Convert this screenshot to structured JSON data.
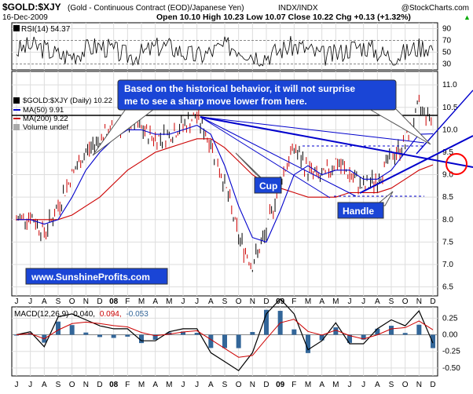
{
  "header": {
    "symbol": "$GOLD:$XJY",
    "description": "(Gold - Continuous Contract (EOD)/Japanese Yen)",
    "exchange": "INDX/INDX",
    "brand": "@StockCharts.com",
    "date": "16-Dec-2009",
    "ohlc_line": "Open 10.10  High 10.23  Low 10.07  Close 10.22  Chg +0.13 (+1.32%)",
    "up_arrow": "▲"
  },
  "rsi_panel": {
    "label": "RSI(14) 54.37",
    "ticks": [
      "90",
      "70",
      "50",
      "30"
    ],
    "tick_values": [
      90,
      70,
      50,
      30
    ]
  },
  "main_panel": {
    "legend": [
      "$GOLD:$XJY (Daily) 10.22",
      "MA(50) 9.91",
      "MA(200) 9.22",
      "Volume undef"
    ],
    "y_ticks": [
      "11.0",
      "10.5",
      "10.0",
      "9.5",
      "9.0",
      "8.5",
      "8.0",
      "7.5",
      "7.0",
      "6.5"
    ],
    "y_values": [
      11.0,
      10.5,
      10.0,
      9.5,
      9.0,
      8.5,
      8.0,
      7.5,
      7.0,
      6.5
    ],
    "callout": [
      "Based on the historical behavior, it will not surprise",
      "me to see a sharp move lower from here."
    ],
    "cup_label": "Cup",
    "handle_label": "Handle",
    "website": "www.SunshineProfits.com"
  },
  "macd_panel": {
    "label_prefix": "MACD(12,26,9)",
    "macd_value": "0.040,",
    "signal_value": "0.094,",
    "hist_value": "-0.053",
    "y_ticks": [
      "0.25",
      "0.00",
      "-0.25",
      "-0.50"
    ],
    "y_values": [
      0.25,
      0.0,
      -0.25,
      -0.5
    ]
  },
  "x_axis": {
    "months": [
      "J",
      "J",
      "A",
      "S",
      "O",
      "N",
      "D",
      "08",
      "F",
      "M",
      "A",
      "M",
      "J",
      "J",
      "A",
      "S",
      "O",
      "N",
      "D",
      "09",
      "F",
      "M",
      "A",
      "M",
      "J",
      "J",
      "A",
      "S",
      "O",
      "N",
      "D"
    ]
  },
  "colors": {
    "price_up": "#000000",
    "price_down": "#cc0000",
    "ma50": "#0000cc",
    "ma200": "#cc0000",
    "trend": "#0000cc",
    "callout_bg": "#1a45d6",
    "macd": "#000000",
    "signal": "#cc0000",
    "histogram": "#336699",
    "circle": "#ff0000"
  },
  "chart_data": {
    "type": "line",
    "title": "$GOLD:$XJY (Gold - Continuous Contract (EOD)/Japanese Yen)",
    "x": [
      "2007-06",
      "2007-07",
      "2007-08",
      "2007-09",
      "2007-10",
      "2007-11",
      "2007-12",
      "2008-01",
      "2008-02",
      "2008-03",
      "2008-04",
      "2008-05",
      "2008-06",
      "2008-07",
      "2008-08",
      "2008-09",
      "2008-10",
      "2008-11",
      "2008-12",
      "2009-01",
      "2009-02",
      "2009-03",
      "2009-04",
      "2009-05",
      "2009-06",
      "2009-07",
      "2009-08",
      "2009-09",
      "2009-10",
      "2009-11",
      "2009-12"
    ],
    "ylim": [
      6.3,
      11.3
    ],
    "series": [
      {
        "name": "$GOLD:$XJY (Daily) 10.22",
        "values": [
          8.0,
          8.1,
          7.7,
          8.3,
          9.0,
          9.5,
          9.8,
          10.0,
          10.2,
          10.0,
          9.8,
          9.9,
          10.1,
          10.3,
          9.7,
          8.8,
          7.6,
          7.0,
          7.7,
          8.9,
          9.6,
          9.1,
          8.9,
          9.3,
          9.0,
          8.7,
          8.9,
          9.4,
          9.7,
          10.5,
          10.22
        ]
      },
      {
        "name": "MA(50) 9.91",
        "values": [
          8.0,
          8.0,
          7.9,
          8.0,
          8.5,
          9.1,
          9.5,
          9.8,
          10.0,
          10.0,
          9.9,
          9.9,
          10.0,
          10.1,
          9.9,
          9.2,
          8.3,
          7.6,
          7.5,
          8.2,
          9.0,
          9.2,
          9.0,
          9.1,
          9.1,
          8.9,
          8.9,
          9.1,
          9.5,
          9.9,
          9.91
        ]
      },
      {
        "name": "MA(200) 9.22",
        "values": [
          8.0,
          8.0,
          8.0,
          8.0,
          8.1,
          8.3,
          8.5,
          8.8,
          9.1,
          9.3,
          9.5,
          9.6,
          9.7,
          9.8,
          9.8,
          9.6,
          9.3,
          9.0,
          8.8,
          8.7,
          8.6,
          8.5,
          8.5,
          8.5,
          8.6,
          8.6,
          8.6,
          8.7,
          8.9,
          9.1,
          9.22
        ]
      }
    ]
  }
}
